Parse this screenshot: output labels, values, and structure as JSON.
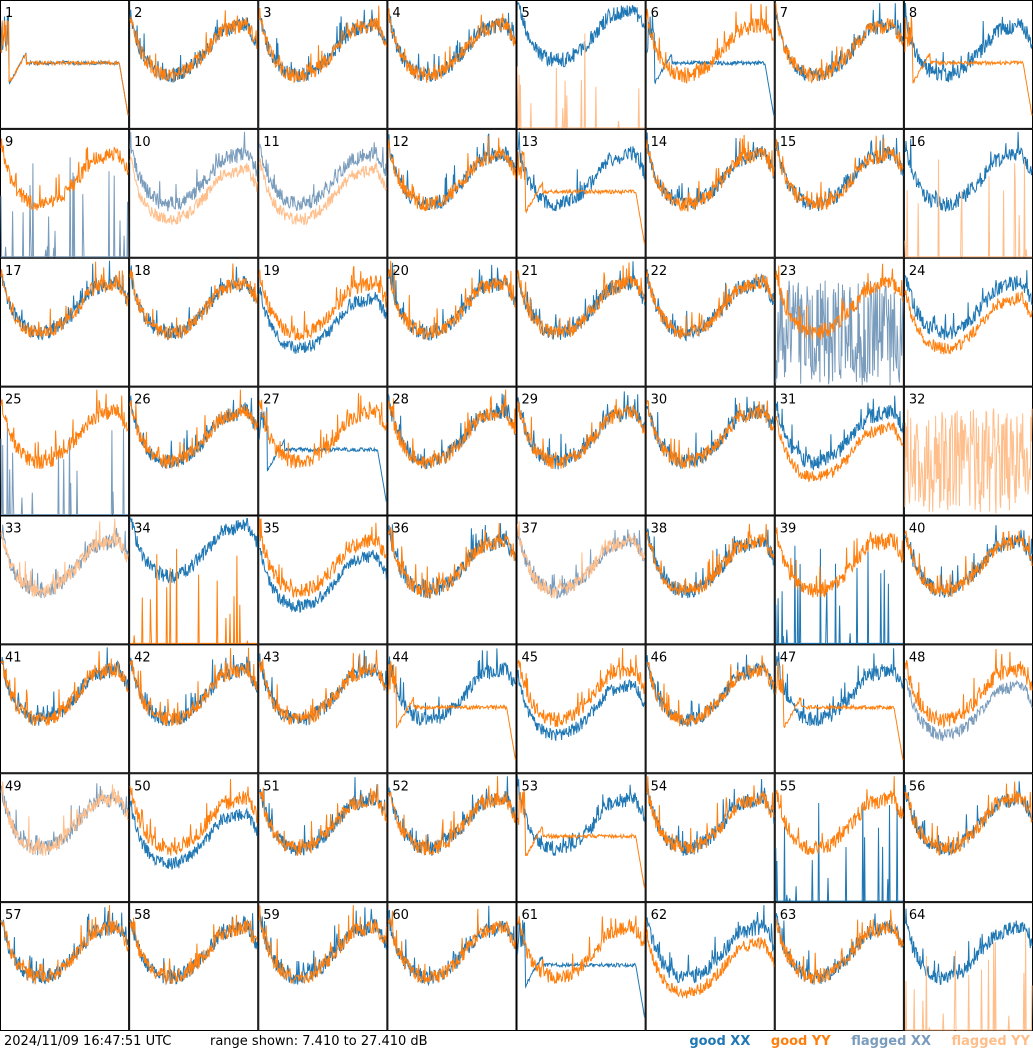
{
  "colors": {
    "good_xx": "#1f77b4",
    "good_yy": "#ff7f0e",
    "flagged_xx": "#7a9cbc",
    "flagged_yy": "#ffbe8a",
    "border": "#000000",
    "background": "#ffffff"
  },
  "footer": {
    "timestamp": "2024/11/09 16:47:51 UTC",
    "range_text": "range shown: 7.410 to 27.410 dB"
  },
  "legend": {
    "good_xx": "good XX",
    "good_yy": "good YY",
    "flagged_xx": "flagged XX",
    "flagged_yy": "flagged YY"
  },
  "chart_data": {
    "type": "line",
    "title": "",
    "xlabel": "",
    "ylabel": "",
    "ylim": [
      7.41,
      27.41
    ],
    "grid": "8x8 panels",
    "series_names": [
      "good XX",
      "good YY",
      "flagged XX",
      "flagged YY"
    ],
    "panels": [
      {
        "id": "1",
        "xx": "bad",
        "yy": "bad",
        "xx_flagged": false,
        "yy_flagged": false
      },
      {
        "id": "2",
        "xx": "normal",
        "yy": "normal",
        "xx_flagged": false,
        "yy_flagged": false
      },
      {
        "id": "3",
        "xx": "normal",
        "yy": "normal",
        "xx_flagged": false,
        "yy_flagged": false
      },
      {
        "id": "4",
        "xx": "normal",
        "yy": "normal",
        "xx_flagged": false,
        "yy_flagged": false
      },
      {
        "id": "5",
        "xx": "high",
        "yy": "spikes",
        "xx_flagged": false,
        "yy_flagged": true
      },
      {
        "id": "6",
        "xx": "bad",
        "yy": "normal",
        "xx_flagged": false,
        "yy_flagged": false
      },
      {
        "id": "7",
        "xx": "normal",
        "yy": "normal",
        "xx_flagged": false,
        "yy_flagged": false
      },
      {
        "id": "8",
        "xx": "normal",
        "yy": "bad",
        "xx_flagged": false,
        "yy_flagged": false
      },
      {
        "id": "9",
        "xx": "spikes",
        "yy": "normal",
        "xx_flagged": true,
        "yy_flagged": false
      },
      {
        "id": "10",
        "xx": "normal",
        "yy": "low",
        "xx_flagged": true,
        "yy_flagged": true
      },
      {
        "id": "11",
        "xx": "normal",
        "yy": "low",
        "xx_flagged": true,
        "yy_flagged": true
      },
      {
        "id": "12",
        "xx": "normal",
        "yy": "normal",
        "xx_flagged": false,
        "yy_flagged": false
      },
      {
        "id": "13",
        "xx": "normal",
        "yy": "bad",
        "xx_flagged": false,
        "yy_flagged": false
      },
      {
        "id": "14",
        "xx": "normal",
        "yy": "normal",
        "xx_flagged": false,
        "yy_flagged": false
      },
      {
        "id": "15",
        "xx": "normal",
        "yy": "normal",
        "xx_flagged": false,
        "yy_flagged": false
      },
      {
        "id": "16",
        "xx": "normal",
        "yy": "spikes",
        "xx_flagged": false,
        "yy_flagged": true
      },
      {
        "id": "17",
        "xx": "normal",
        "yy": "normal",
        "xx_flagged": false,
        "yy_flagged": false
      },
      {
        "id": "18",
        "xx": "normal",
        "yy": "normal",
        "xx_flagged": false,
        "yy_flagged": false
      },
      {
        "id": "19",
        "xx": "low",
        "yy": "normal",
        "xx_flagged": false,
        "yy_flagged": false
      },
      {
        "id": "20",
        "xx": "normal",
        "yy": "normal",
        "xx_flagged": false,
        "yy_flagged": false
      },
      {
        "id": "21",
        "xx": "normal",
        "yy": "normal",
        "xx_flagged": false,
        "yy_flagged": false
      },
      {
        "id": "22",
        "xx": "normal",
        "yy": "normal",
        "xx_flagged": false,
        "yy_flagged": false
      },
      {
        "id": "23",
        "xx": "noisy",
        "yy": "normal",
        "xx_flagged": true,
        "yy_flagged": false
      },
      {
        "id": "24",
        "xx": "normal",
        "yy": "low",
        "xx_flagged": false,
        "yy_flagged": false
      },
      {
        "id": "25",
        "xx": "spikes",
        "yy": "normal",
        "xx_flagged": true,
        "yy_flagged": false
      },
      {
        "id": "26",
        "xx": "normal",
        "yy": "normal",
        "xx_flagged": false,
        "yy_flagged": false
      },
      {
        "id": "27",
        "xx": "bad",
        "yy": "normal",
        "xx_flagged": false,
        "yy_flagged": false
      },
      {
        "id": "28",
        "xx": "normal",
        "yy": "normal",
        "xx_flagged": false,
        "yy_flagged": false
      },
      {
        "id": "29",
        "xx": "normal",
        "yy": "normal",
        "xx_flagged": false,
        "yy_flagged": false
      },
      {
        "id": "30",
        "xx": "normal",
        "yy": "normal",
        "xx_flagged": false,
        "yy_flagged": false
      },
      {
        "id": "31",
        "xx": "normal",
        "yy": "low",
        "xx_flagged": false,
        "yy_flagged": false
      },
      {
        "id": "32",
        "xx": "none",
        "yy": "noisy",
        "xx_flagged": false,
        "yy_flagged": true
      },
      {
        "id": "33",
        "xx": "normal",
        "yy": "normal",
        "xx_flagged": true,
        "yy_flagged": true
      },
      {
        "id": "34",
        "xx": "high",
        "yy": "spikes",
        "xx_flagged": false,
        "yy_flagged": false
      },
      {
        "id": "35",
        "xx": "low",
        "yy": "normal",
        "xx_flagged": false,
        "yy_flagged": false
      },
      {
        "id": "36",
        "xx": "normal",
        "yy": "normal",
        "xx_flagged": false,
        "yy_flagged": false
      },
      {
        "id": "37",
        "xx": "normal",
        "yy": "normal",
        "xx_flagged": true,
        "yy_flagged": true
      },
      {
        "id": "38",
        "xx": "normal",
        "yy": "normal",
        "xx_flagged": false,
        "yy_flagged": false
      },
      {
        "id": "39",
        "xx": "spikes",
        "yy": "normal",
        "xx_flagged": false,
        "yy_flagged": false
      },
      {
        "id": "40",
        "xx": "normal",
        "yy": "normal",
        "xx_flagged": false,
        "yy_flagged": false
      },
      {
        "id": "41",
        "xx": "normal",
        "yy": "normal",
        "xx_flagged": false,
        "yy_flagged": false
      },
      {
        "id": "42",
        "xx": "normal",
        "yy": "normal",
        "xx_flagged": false,
        "yy_flagged": false
      },
      {
        "id": "43",
        "xx": "normal",
        "yy": "normal",
        "xx_flagged": false,
        "yy_flagged": false
      },
      {
        "id": "44",
        "xx": "normal",
        "yy": "bad",
        "xx_flagged": false,
        "yy_flagged": false
      },
      {
        "id": "45",
        "xx": "low",
        "yy": "normal",
        "xx_flagged": false,
        "yy_flagged": false
      },
      {
        "id": "46",
        "xx": "normal",
        "yy": "normal",
        "xx_flagged": false,
        "yy_flagged": false
      },
      {
        "id": "47",
        "xx": "normal",
        "yy": "bad",
        "xx_flagged": false,
        "yy_flagged": false
      },
      {
        "id": "48",
        "xx": "low",
        "yy": "normal",
        "xx_flagged": true,
        "yy_flagged": false
      },
      {
        "id": "49",
        "xx": "normal",
        "yy": "normal",
        "xx_flagged": true,
        "yy_flagged": true
      },
      {
        "id": "50",
        "xx": "low",
        "yy": "normal",
        "xx_flagged": false,
        "yy_flagged": false
      },
      {
        "id": "51",
        "xx": "normal",
        "yy": "normal",
        "xx_flagged": false,
        "yy_flagged": false
      },
      {
        "id": "52",
        "xx": "normal",
        "yy": "normal",
        "xx_flagged": false,
        "yy_flagged": false
      },
      {
        "id": "53",
        "xx": "normal",
        "yy": "bad",
        "xx_flagged": false,
        "yy_flagged": false
      },
      {
        "id": "54",
        "xx": "normal",
        "yy": "normal",
        "xx_flagged": false,
        "yy_flagged": false
      },
      {
        "id": "55",
        "xx": "spikes",
        "yy": "normal",
        "xx_flagged": false,
        "yy_flagged": false
      },
      {
        "id": "56",
        "xx": "normal",
        "yy": "normal",
        "xx_flagged": false,
        "yy_flagged": false
      },
      {
        "id": "57",
        "xx": "normal",
        "yy": "normal",
        "xx_flagged": false,
        "yy_flagged": false
      },
      {
        "id": "58",
        "xx": "normal",
        "yy": "normal",
        "xx_flagged": false,
        "yy_flagged": false
      },
      {
        "id": "59",
        "xx": "normal",
        "yy": "normal",
        "xx_flagged": false,
        "yy_flagged": false
      },
      {
        "id": "60",
        "xx": "normal",
        "yy": "normal",
        "xx_flagged": false,
        "yy_flagged": false
      },
      {
        "id": "61",
        "xx": "bad",
        "yy": "normal",
        "xx_flagged": false,
        "yy_flagged": false
      },
      {
        "id": "62",
        "xx": "normal",
        "yy": "low",
        "xx_flagged": false,
        "yy_flagged": false
      },
      {
        "id": "63",
        "xx": "normal",
        "yy": "normal",
        "xx_flagged": false,
        "yy_flagged": false
      },
      {
        "id": "64",
        "xx": "normal",
        "yy": "spikes",
        "xx_flagged": false,
        "yy_flagged": true
      }
    ]
  }
}
